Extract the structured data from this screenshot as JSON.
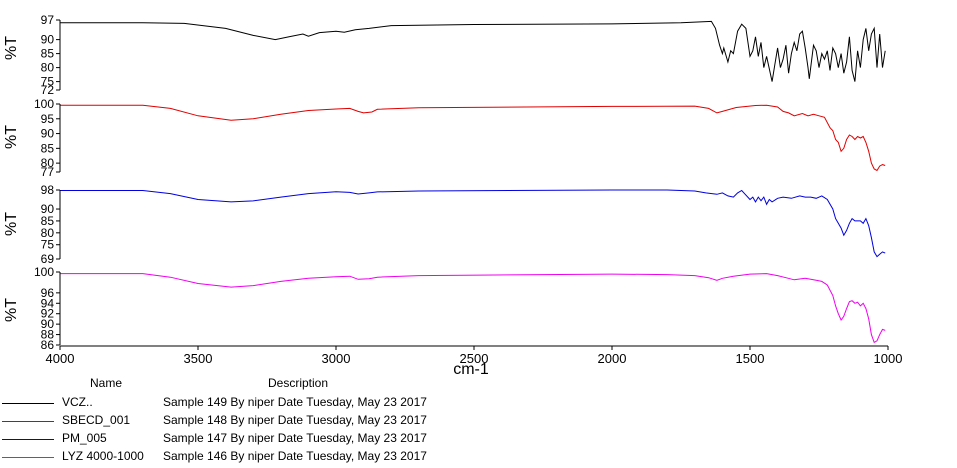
{
  "chart_data": {
    "type": "line",
    "title": "",
    "xlabel": "cm-1",
    "xlim": [
      4000,
      1000
    ],
    "x_reversed": true,
    "x_ticks": [
      "4000",
      "3500",
      "3000",
      "2500",
      "2000",
      "1500",
      "1000"
    ],
    "panels": [
      {
        "ylabel": "%T",
        "ylim": [
          72,
          97
        ],
        "y_ticks": [
          "97",
          "90",
          "85",
          "80",
          "75",
          "72"
        ],
        "series": {
          "name": "VCZ..",
          "color": "#000000",
          "points": [
            [
              4000,
              96
            ],
            [
              3700,
              96
            ],
            [
              3550,
              95.8
            ],
            [
              3400,
              94
            ],
            [
              3300,
              91.5
            ],
            [
              3220,
              90
            ],
            [
              3170,
              91
            ],
            [
              3120,
              92
            ],
            [
              3100,
              91.2
            ],
            [
              3060,
              92.5
            ],
            [
              3000,
              93
            ],
            [
              2970,
              92.6
            ],
            [
              2930,
              93.5
            ],
            [
              2880,
              94
            ],
            [
              2800,
              95
            ],
            [
              2500,
              95.4
            ],
            [
              2000,
              95.6
            ],
            [
              1750,
              96
            ],
            [
              1640,
              96.5
            ],
            [
              1625,
              94
            ],
            [
              1610,
              88
            ],
            [
              1600,
              85
            ],
            [
              1595,
              87
            ],
            [
              1580,
              82
            ],
            [
              1570,
              86
            ],
            [
              1560,
              85
            ],
            [
              1545,
              93
            ],
            [
              1530,
              95.5
            ],
            [
              1515,
              94
            ],
            [
              1500,
              84
            ],
            [
              1490,
              86
            ],
            [
              1480,
              91
            ],
            [
              1470,
              84
            ],
            [
              1460,
              89
            ],
            [
              1450,
              80
            ],
            [
              1440,
              84
            ],
            [
              1420,
              75
            ],
            [
              1410,
              81
            ],
            [
              1400,
              87
            ],
            [
              1390,
              80
            ],
            [
              1380,
              83
            ],
            [
              1370,
              88
            ],
            [
              1360,
              78
            ],
            [
              1350,
              85
            ],
            [
              1340,
              89
            ],
            [
              1330,
              86
            ],
            [
              1320,
              92
            ],
            [
              1310,
              93
            ],
            [
              1300,
              87
            ],
            [
              1290,
              80
            ],
            [
              1285,
              76
            ],
            [
              1280,
              80
            ],
            [
              1270,
              88
            ],
            [
              1260,
              86
            ],
            [
              1250,
              80
            ],
            [
              1240,
              85
            ],
            [
              1230,
              83
            ],
            [
              1220,
              86
            ],
            [
              1210,
              79
            ],
            [
              1200,
              87
            ],
            [
              1190,
              85
            ],
            [
              1180,
              80
            ],
            [
              1170,
              85
            ],
            [
              1160,
              78
            ],
            [
              1150,
              82
            ],
            [
              1140,
              91
            ],
            [
              1130,
              79
            ],
            [
              1120,
              75
            ],
            [
              1110,
              86
            ],
            [
              1100,
              80
            ],
            [
              1090,
              90
            ],
            [
              1080,
              94
            ],
            [
              1070,
              86
            ],
            [
              1060,
              92
            ],
            [
              1050,
              94
            ],
            [
              1040,
              80
            ],
            [
              1030,
              92
            ],
            [
              1020,
              80
            ],
            [
              1010,
              86
            ]
          ]
        }
      },
      {
        "ylabel": "%T",
        "ylim": [
          77,
          100
        ],
        "y_ticks": [
          "100",
          "95",
          "90",
          "85",
          "80",
          "77"
        ],
        "series": {
          "name": "SBECD_001",
          "color": "#e00000",
          "points": [
            [
              4000,
              99.6
            ],
            [
              3700,
              99.6
            ],
            [
              3600,
              98.5
            ],
            [
              3500,
              96
            ],
            [
              3380,
              94.5
            ],
            [
              3300,
              95
            ],
            [
              3200,
              96.5
            ],
            [
              3100,
              97.8
            ],
            [
              3000,
              98.3
            ],
            [
              2950,
              98.5
            ],
            [
              2920,
              97.5
            ],
            [
              2900,
              97
            ],
            [
              2870,
              97.3
            ],
            [
              2850,
              98.2
            ],
            [
              2700,
              98.7
            ],
            [
              2000,
              99.2
            ],
            [
              1700,
              99.3
            ],
            [
              1650,
              98.5
            ],
            [
              1620,
              97
            ],
            [
              1600,
              97.5
            ],
            [
              1550,
              98.8
            ],
            [
              1480,
              99.5
            ],
            [
              1440,
              99.6
            ],
            [
              1400,
              99
            ],
            [
              1380,
              97.5
            ],
            [
              1360,
              97
            ],
            [
              1340,
              96
            ],
            [
              1310,
              96.8
            ],
            [
              1290,
              96
            ],
            [
              1270,
              96.5
            ],
            [
              1250,
              96
            ],
            [
              1230,
              95.5
            ],
            [
              1210,
              92
            ],
            [
              1200,
              91
            ],
            [
              1190,
              88
            ],
            [
              1180,
              87
            ],
            [
              1170,
              84
            ],
            [
              1160,
              85
            ],
            [
              1150,
              88
            ],
            [
              1140,
              89.5
            ],
            [
              1130,
              89
            ],
            [
              1120,
              88
            ],
            [
              1110,
              89
            ],
            [
              1100,
              88.5
            ],
            [
              1090,
              89
            ],
            [
              1080,
              87
            ],
            [
              1070,
              84
            ],
            [
              1060,
              80
            ],
            [
              1050,
              78
            ],
            [
              1040,
              77.5
            ],
            [
              1030,
              79
            ],
            [
              1020,
              79.5
            ],
            [
              1010,
              79.2
            ]
          ]
        }
      },
      {
        "ylabel": "%T",
        "ylim": [
          69,
          98
        ],
        "y_ticks": [
          "98",
          "90",
          "85",
          "80",
          "75",
          "69"
        ],
        "series": {
          "name": "PM_005",
          "color": "#0000e0",
          "points": [
            [
              4000,
              97.8
            ],
            [
              3700,
              97.8
            ],
            [
              3600,
              96.5
            ],
            [
              3500,
              94
            ],
            [
              3380,
              93
            ],
            [
              3300,
              93.4
            ],
            [
              3200,
              95
            ],
            [
              3100,
              96.5
            ],
            [
              3000,
              97.3
            ],
            [
              2950,
              97
            ],
            [
              2920,
              96.3
            ],
            [
              2880,
              96.8
            ],
            [
              2850,
              97.2
            ],
            [
              2700,
              97.6
            ],
            [
              2000,
              98
            ],
            [
              1800,
              98
            ],
            [
              1700,
              97.6
            ],
            [
              1660,
              96.8
            ],
            [
              1620,
              96.2
            ],
            [
              1600,
              96.8
            ],
            [
              1580,
              95.5
            ],
            [
              1560,
              95
            ],
            [
              1545,
              96.8
            ],
            [
              1530,
              97.8
            ],
            [
              1520,
              96.5
            ],
            [
              1500,
              94
            ],
            [
              1490,
              95
            ],
            [
              1480,
              93
            ],
            [
              1470,
              95
            ],
            [
              1460,
              93.5
            ],
            [
              1450,
              95
            ],
            [
              1440,
              92
            ],
            [
              1430,
              94
            ],
            [
              1420,
              93
            ],
            [
              1400,
              94.5
            ],
            [
              1380,
              95
            ],
            [
              1350,
              94.5
            ],
            [
              1320,
              95.5
            ],
            [
              1300,
              95
            ],
            [
              1280,
              95
            ],
            [
              1260,
              94.5
            ],
            [
              1240,
              95.5
            ],
            [
              1220,
              94
            ],
            [
              1200,
              90
            ],
            [
              1190,
              86
            ],
            [
              1180,
              84
            ],
            [
              1170,
              82
            ],
            [
              1160,
              79
            ],
            [
              1150,
              81
            ],
            [
              1140,
              84
            ],
            [
              1130,
              86
            ],
            [
              1120,
              85
            ],
            [
              1100,
              85
            ],
            [
              1090,
              84
            ],
            [
              1080,
              86
            ],
            [
              1070,
              83
            ],
            [
              1060,
              78
            ],
            [
              1050,
              72
            ],
            [
              1040,
              70
            ],
            [
              1030,
              71
            ],
            [
              1020,
              72
            ],
            [
              1010,
              71.5
            ]
          ]
        }
      },
      {
        "ylabel": "%T",
        "ylim": [
          86,
          100
        ],
        "y_ticks": [
          "100",
          "96",
          "94",
          "92",
          "90",
          "88",
          "86"
        ],
        "series": {
          "name": "LYZ 4000-1000",
          "color": "#ee00ee",
          "points": [
            [
              4000,
              99.7
            ],
            [
              3700,
              99.7
            ],
            [
              3600,
              99
            ],
            [
              3500,
              97.8
            ],
            [
              3380,
              97.1
            ],
            [
              3300,
              97.4
            ],
            [
              3200,
              98.2
            ],
            [
              3100,
              98.8
            ],
            [
              3000,
              99.1
            ],
            [
              2950,
              99.2
            ],
            [
              2920,
              98.6
            ],
            [
              2880,
              98.7
            ],
            [
              2850,
              99
            ],
            [
              2700,
              99.3
            ],
            [
              2000,
              99.6
            ],
            [
              1800,
              99.5
            ],
            [
              1700,
              99.3
            ],
            [
              1650,
              98.9
            ],
            [
              1620,
              98.4
            ],
            [
              1600,
              98.8
            ],
            [
              1560,
              99.2
            ],
            [
              1500,
              99.6
            ],
            [
              1440,
              99.7
            ],
            [
              1400,
              99.3
            ],
            [
              1370,
              98.9
            ],
            [
              1340,
              98.5
            ],
            [
              1300,
              98.8
            ],
            [
              1280,
              98.6
            ],
            [
              1260,
              98.4
            ],
            [
              1240,
              98.2
            ],
            [
              1220,
              97.5
            ],
            [
              1200,
              95.5
            ],
            [
              1190,
              93.5
            ],
            [
              1180,
              92
            ],
            [
              1170,
              90.8
            ],
            [
              1160,
              91.5
            ],
            [
              1150,
              93
            ],
            [
              1140,
              94.3
            ],
            [
              1130,
              94.5
            ],
            [
              1120,
              94
            ],
            [
              1110,
              94.2
            ],
            [
              1100,
              93.5
            ],
            [
              1090,
              94
            ],
            [
              1080,
              93
            ],
            [
              1070,
              91
            ],
            [
              1060,
              88
            ],
            [
              1050,
              86.5
            ],
            [
              1040,
              86.8
            ],
            [
              1030,
              88
            ],
            [
              1020,
              89
            ],
            [
              1010,
              88.8
            ]
          ]
        }
      }
    ]
  },
  "legend": {
    "name_header": "Name",
    "description_header": "Description",
    "entries": [
      {
        "name": "VCZ..",
        "description": "Sample 149 By niper Date Tuesday, May 23 2017",
        "color": "#000000"
      },
      {
        "name": "SBECD_001",
        "description": "Sample 148 By niper Date Tuesday, May 23 2017",
        "color": "#e00000"
      },
      {
        "name": "PM_005",
        "description": "Sample 147 By niper Date Tuesday, May 23 2017",
        "color": "#0000e0"
      },
      {
        "name": "LYZ 4000-1000",
        "description": "Sample 146 By niper Date Tuesday, May 23 2017",
        "color": "#ee00ee"
      }
    ]
  }
}
